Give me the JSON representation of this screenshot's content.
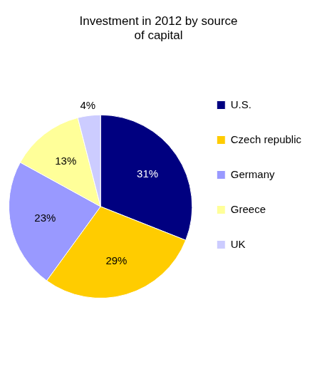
{
  "chart_data": {
    "type": "pie",
    "title": "Investment in 2012 by source of capital",
    "categories": [
      "U.S.",
      "Czech republic",
      "Germany",
      "Greece",
      "UK"
    ],
    "values": [
      31,
      29,
      23,
      13,
      4
    ],
    "value_labels": [
      "31%",
      "29%",
      "23%",
      "13%",
      "4%"
    ],
    "colors": [
      "#000080",
      "#ffcc00",
      "#9999ff",
      "#ffff99",
      "#ccccff"
    ],
    "data_labels": true,
    "legend": "right"
  }
}
